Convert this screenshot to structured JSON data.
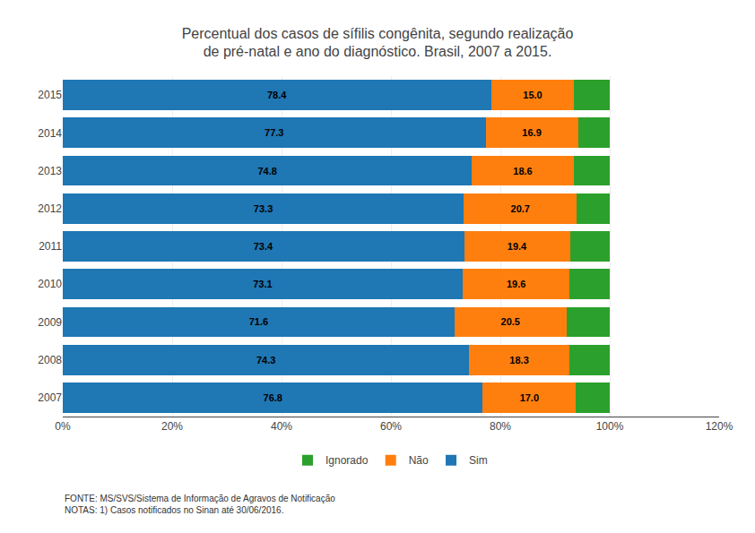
{
  "chart_data": {
    "type": "bar",
    "orientation": "horizontal",
    "stacked": true,
    "title": "Percentual dos casos de sífilis congênita, segundo realização\nde pré-natal e ano do diagnóstico. Brasil, 2007 a 2015.",
    "categories": [
      "2015",
      "2014",
      "2013",
      "2012",
      "2011",
      "2010",
      "2009",
      "2008",
      "2007"
    ],
    "series": [
      {
        "name": "Sim",
        "values": [
          78.4,
          77.3,
          74.8,
          73.3,
          73.4,
          73.1,
          71.6,
          74.3,
          76.8
        ],
        "data_labels": true
      },
      {
        "name": "Não",
        "values": [
          15.0,
          16.9,
          18.6,
          20.7,
          19.4,
          19.6,
          20.5,
          18.3,
          17.0
        ],
        "data_labels": true,
        "value_labels": [
          "15.0",
          "16.9",
          "18.6",
          "20.7",
          "19.4",
          "19.6",
          "20.5",
          "18.3",
          "17.0"
        ]
      },
      {
        "name": "Ignorado",
        "values": [
          6.6,
          5.8,
          6.6,
          6.0,
          7.2,
          7.3,
          7.9,
          7.4,
          6.2
        ],
        "data_labels": false
      }
    ],
    "xlim": [
      0,
      120
    ],
    "xticks": [
      {
        "value": 0,
        "label": "0%"
      },
      {
        "value": 20,
        "label": "20%"
      },
      {
        "value": 40,
        "label": "40%"
      },
      {
        "value": 60,
        "label": "60%"
      },
      {
        "value": 80,
        "label": "80%"
      },
      {
        "value": 100,
        "label": "100%"
      },
      {
        "value": 120,
        "label": "120%"
      }
    ],
    "grid": true,
    "legend": "bottom",
    "annotations": [
      "FONTE: MS/SVS/Sistema de Informação de Agravos de Notificação\nNOTAS: 1) Casos notificados no Sinan até 30/06/2016."
    ]
  }
}
